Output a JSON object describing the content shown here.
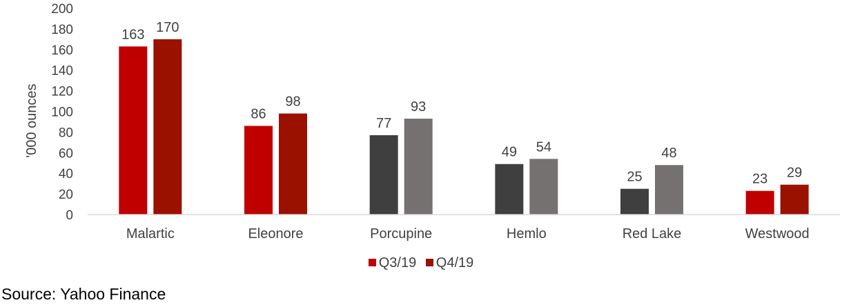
{
  "chart_data": {
    "type": "bar",
    "categories": [
      "Malartic",
      "Eleonore",
      "Porcupine",
      "Hemlo",
      "Red Lake",
      "Westwood"
    ],
    "series": [
      {
        "name": "Q3/19",
        "values": [
          163,
          86,
          77,
          49,
          25,
          23
        ],
        "legend_color": "#C00000"
      },
      {
        "name": "Q4/19",
        "values": [
          170,
          98,
          93,
          54,
          48,
          29
        ],
        "legend_color": "#9A1100"
      }
    ],
    "bar_colors": [
      [
        "#C00000",
        "#9A1100"
      ],
      [
        "#C00000",
        "#9A1100"
      ],
      [
        "#3F3F3F",
        "#767171"
      ],
      [
        "#3F3F3F",
        "#767171"
      ],
      [
        "#3F3F3F",
        "#767171"
      ],
      [
        "#C00000",
        "#9A1100"
      ]
    ],
    "ylabel": "'000 ounces",
    "xlabel": "",
    "ylim": [
      0,
      200
    ],
    "yticks": [
      0,
      20,
      40,
      60,
      80,
      100,
      120,
      140,
      160,
      180,
      200
    ],
    "grid": false,
    "legend_position": "bottom"
  },
  "source": "Source: Yahoo Finance"
}
